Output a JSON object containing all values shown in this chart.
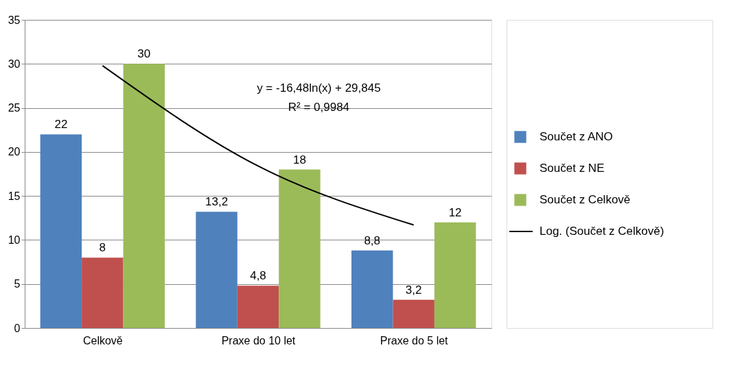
{
  "chart_data": {
    "type": "bar",
    "categories": [
      "Celkově",
      "Praxe do 10 let",
      "Praxe do 5 let"
    ],
    "series": [
      {
        "name": "Součet z ANO",
        "color": "#4f81bd",
        "values": [
          22,
          13.2,
          8.8
        ],
        "value_labels": [
          "22",
          "13,2",
          "8,8"
        ]
      },
      {
        "name": "Součet z NE",
        "color": "#c0504d",
        "values": [
          8,
          4.8,
          3.2
        ],
        "value_labels": [
          "8",
          "4,8",
          "3,2"
        ]
      },
      {
        "name": "Součet z Celkově",
        "color": "#9bbb59",
        "values": [
          30,
          18,
          12
        ],
        "value_labels": [
          "30",
          "18",
          "12"
        ]
      },
      {
        "name": "Log. (Součet z Celkově)",
        "type": "line",
        "color": "#000000",
        "values": [
          29.8,
          18.4,
          11.7
        ]
      }
    ],
    "ylim": [
      0,
      35
    ],
    "yticks": [
      0,
      5,
      10,
      15,
      20,
      25,
      30,
      35
    ],
    "grid": "y",
    "legend": "right",
    "annotations": [
      "y = -16,48ln(x) + 29,845",
      "R² = 0,9984"
    ]
  }
}
